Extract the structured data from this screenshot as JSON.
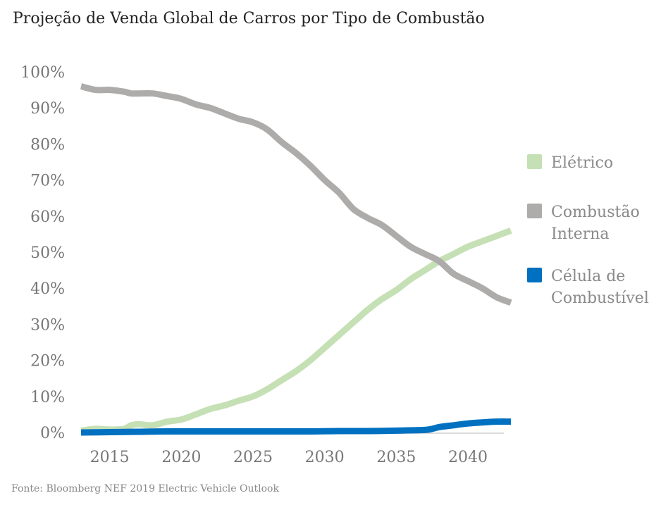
{
  "title": "Projeção de Venda Global de Carros por Tipo de Combustão",
  "source": "Fonte: Bloomberg NEF 2019 Electric Vehicle Outlook",
  "chart_data": {
    "type": "line",
    "title": "Projeção de Venda Global de Carros por Tipo de Combustão",
    "xlabel": "",
    "ylabel": "",
    "xlim": [
      2013,
      2043
    ],
    "ylim": [
      0,
      100
    ],
    "x_ticks": [
      "2015",
      "2020",
      "2025",
      "2030",
      "2035",
      "2040"
    ],
    "y_ticks": [
      "0%",
      "10%",
      "20%",
      "30%",
      "40%",
      "50%",
      "60%",
      "70%",
      "80%",
      "90%",
      "100%"
    ],
    "grid": false,
    "legend_position": "right",
    "series": [
      {
        "name": "Elétrico",
        "color": "#c5e0b4",
        "x": [
          2013,
          2014,
          2015,
          2016,
          2016.5,
          2017,
          2018,
          2019,
          2020,
          2021,
          2022,
          2023,
          2024,
          2025,
          2026,
          2027,
          2028,
          2029,
          2030,
          2031,
          2032,
          2033,
          2034,
          2035,
          2036,
          2037,
          2038,
          2039,
          2040,
          2041,
          2042,
          2043
        ],
        "values": [
          0.5,
          1,
          0.8,
          1,
          2,
          2.3,
          2,
          3,
          3.6,
          5,
          6.5,
          7.5,
          8.8,
          10,
          12,
          14.5,
          17,
          20,
          23.5,
          27,
          30.5,
          34,
          37,
          39.5,
          42.5,
          45,
          47.5,
          49.5,
          51.5,
          53,
          54.5,
          56
        ]
      },
      {
        "name": "Combustão Interna",
        "color": "#aeabab",
        "x": [
          2013,
          2014,
          2015,
          2016,
          2016.5,
          2017,
          2018,
          2019,
          2020,
          2021,
          2022,
          2023,
          2024,
          2025,
          2026,
          2027,
          2028,
          2029,
          2030,
          2031,
          2032,
          2033,
          2034,
          2035,
          2036,
          2037,
          2038,
          2039,
          2040,
          2041,
          2042,
          2043
        ],
        "values": [
          96,
          95,
          95,
          94.5,
          94,
          94,
          94,
          93.3,
          92.5,
          91,
          90,
          88.5,
          87,
          86,
          84,
          80.5,
          77.5,
          74,
          70,
          66.5,
          62,
          59.5,
          57.5,
          54.5,
          51.5,
          49.5,
          47.5,
          44,
          42,
          40,
          37.5,
          36
        ]
      },
      {
        "name": "Célula de Combustível",
        "color": "#0070c0",
        "x": [
          2013,
          2015,
          2017,
          2019,
          2021,
          2023,
          2025,
          2027,
          2029,
          2031,
          2033,
          2035,
          2036,
          2037,
          2037.5,
          2038,
          2039,
          2040,
          2041,
          2042,
          2043
        ],
        "values": [
          0,
          0.1,
          0.2,
          0.3,
          0.3,
          0.3,
          0.3,
          0.3,
          0.3,
          0.4,
          0.4,
          0.5,
          0.6,
          0.7,
          1,
          1.5,
          2,
          2.5,
          2.8,
          3,
          3
        ]
      }
    ],
    "legend": [
      {
        "lines": [
          "Elétrico"
        ]
      },
      {
        "lines": [
          "Combustão",
          "Interna"
        ]
      },
      {
        "lines": [
          "Célula de",
          "Combustível"
        ]
      }
    ]
  }
}
